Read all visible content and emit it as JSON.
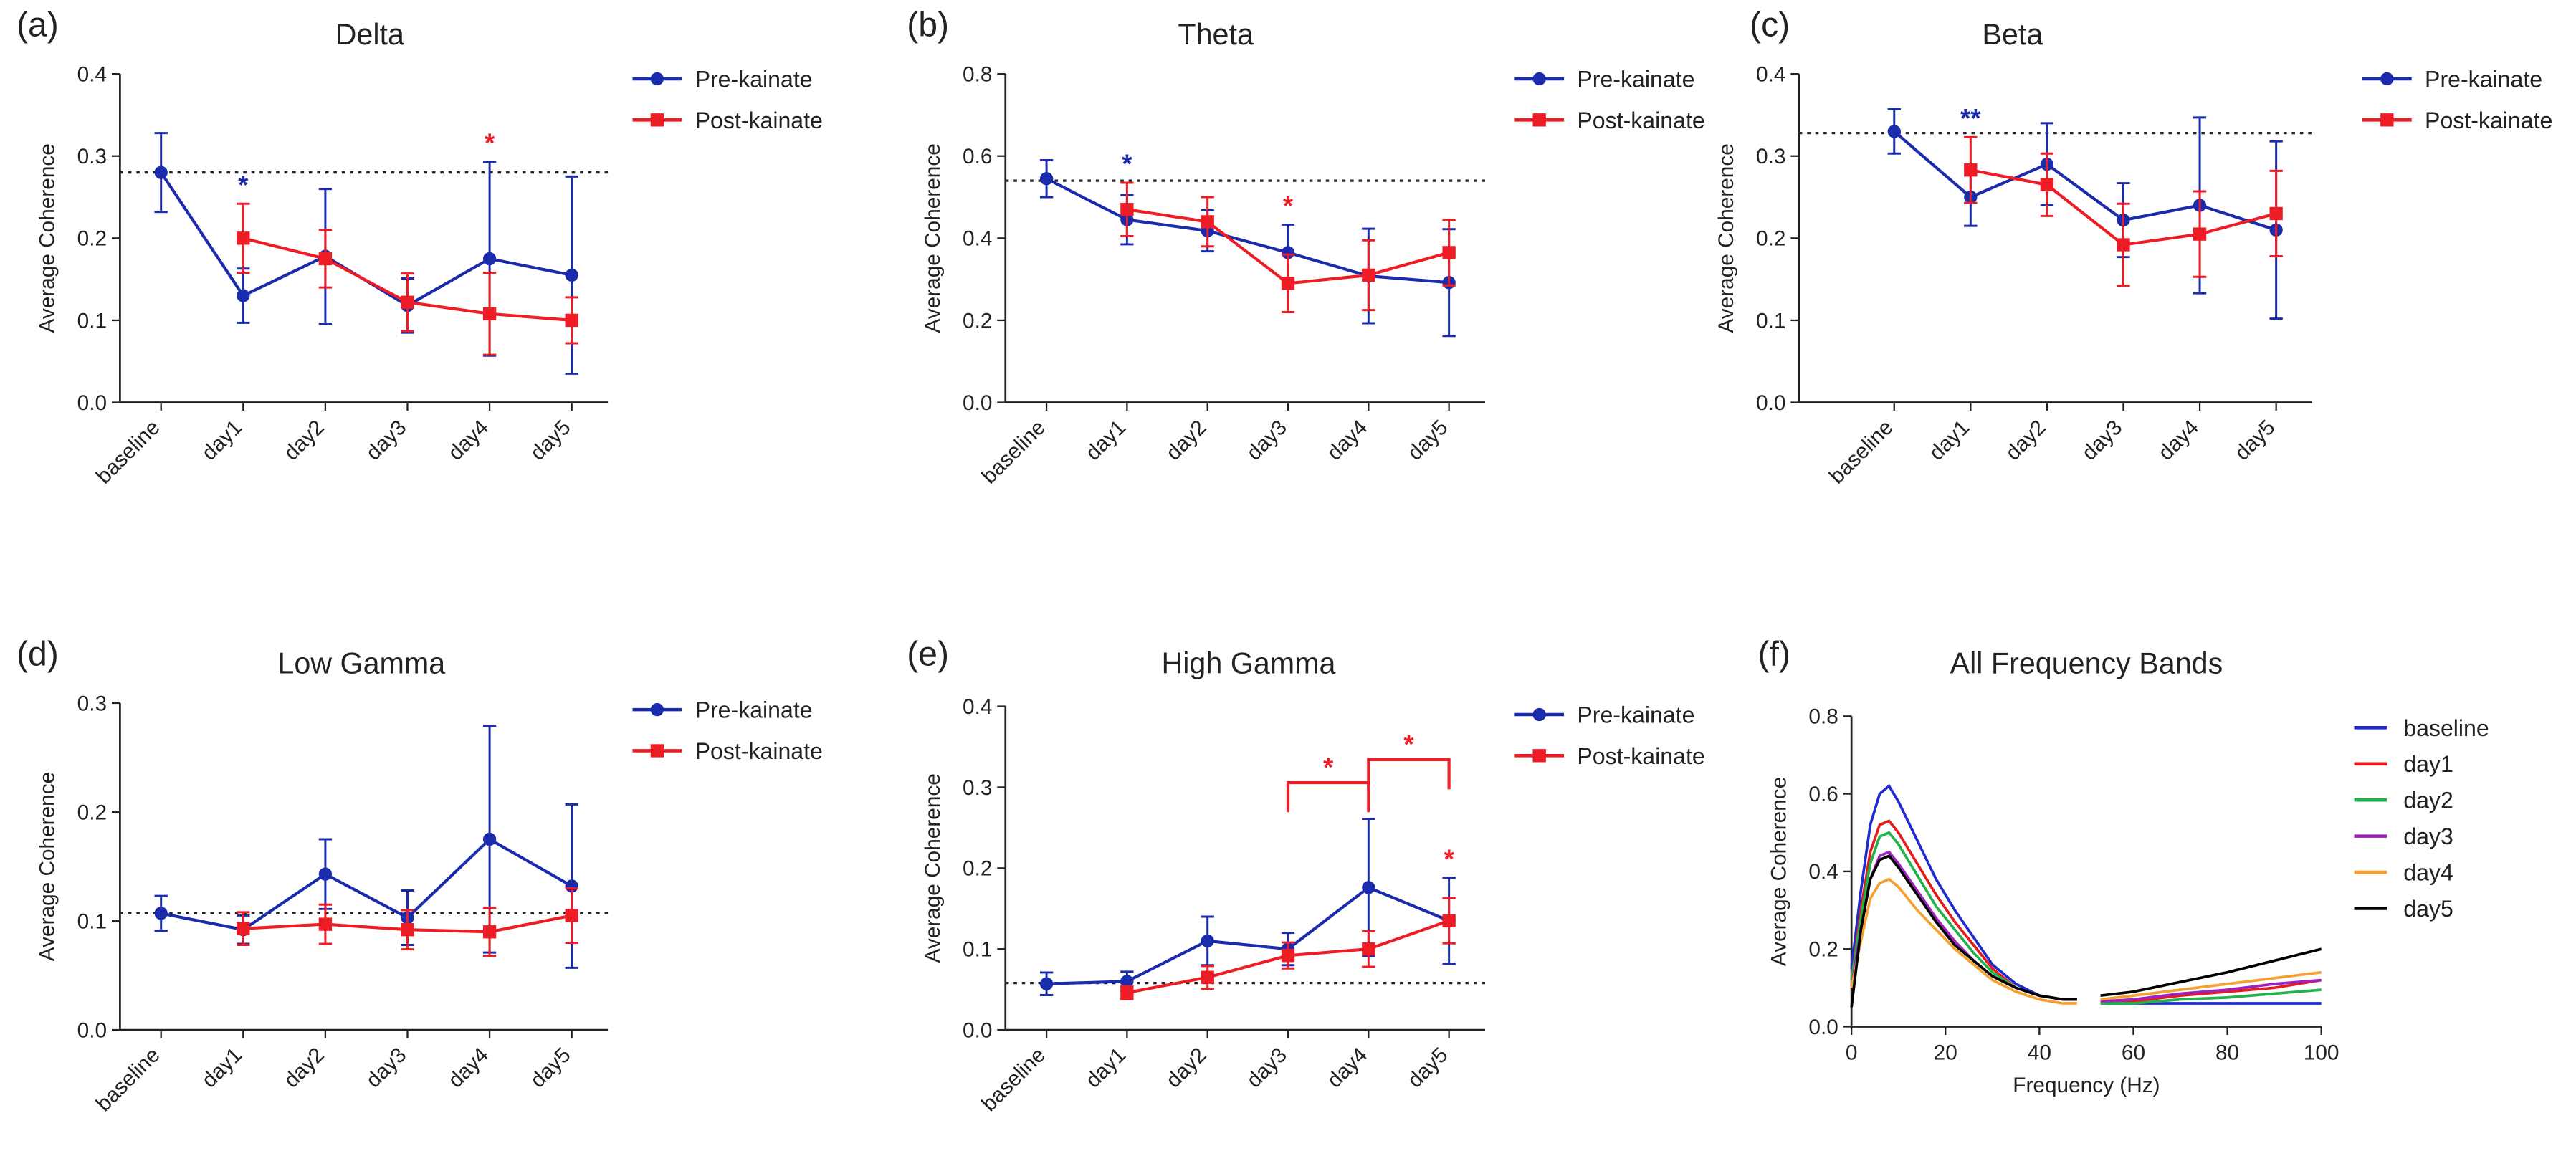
{
  "chart_data": [
    {
      "type": "line",
      "label": "(a)",
      "title": "Delta",
      "y_label": "Average Coherence",
      "categories": [
        "baseline",
        "day1",
        "day2",
        "day3",
        "day4",
        "day5"
      ],
      "ylim": [
        0,
        0.4
      ],
      "yticks": [
        {
          "value": 0,
          "label": "0.0"
        },
        0.1,
        0.2,
        0.3,
        0.4
      ],
      "reference": 0.28,
      "series": [
        {
          "name": "Pre-kainate",
          "color": "#1a2bab",
          "marker": "circle",
          "values": [
            0.28,
            0.13,
            0.178,
            0.118,
            0.175,
            0.155
          ],
          "errors": [
            0.048,
            0.033,
            0.082,
            0.033,
            0.118,
            0.12
          ]
        },
        {
          "name": "Post-kainate",
          "color": "#ee1c25",
          "marker": "square",
          "values": [
            null,
            0.2,
            0.175,
            0.122,
            0.108,
            0.1
          ],
          "errors": [
            null,
            0.042,
            0.035,
            0.035,
            0.05,
            0.028
          ]
        }
      ],
      "annotations": [
        {
          "text": "*",
          "x": "day1",
          "color": "#1a2bab"
        },
        {
          "text": "*",
          "x": "day4",
          "color": "#ee1c25"
        }
      ]
    },
    {
      "type": "line",
      "label": "(b)",
      "title": "Theta",
      "y_label": "Average Coherence",
      "categories": [
        "baseline",
        "day1",
        "day2",
        "day3",
        "day4",
        "day5"
      ],
      "ylim": [
        0,
        0.8
      ],
      "yticks": [
        {
          "value": 0,
          "label": "0.0"
        },
        0.2,
        0.4,
        0.6,
        0.8
      ],
      "reference": 0.54,
      "series": [
        {
          "name": "Pre-kainate",
          "color": "#1a2bab",
          "marker": "circle",
          "values": [
            0.545,
            0.445,
            0.418,
            0.365,
            0.308,
            0.292
          ],
          "errors": [
            0.045,
            0.06,
            0.05,
            0.068,
            0.115,
            0.13
          ]
        },
        {
          "name": "Post-kainate",
          "color": "#ee1c25",
          "marker": "square",
          "values": [
            null,
            0.47,
            0.44,
            0.29,
            0.31,
            0.365
          ],
          "errors": [
            null,
            0.065,
            0.06,
            0.07,
            0.085,
            0.08
          ]
        }
      ],
      "annotations": [
        {
          "text": "*",
          "x": "day1",
          "color": "#1a2bab"
        },
        {
          "text": "*",
          "x": "day3",
          "color": "#ee1c25"
        }
      ]
    },
    {
      "type": "line",
      "label": "(c)",
      "title": "Beta",
      "y_label": "Average Coherence",
      "categories": [
        "baseline",
        "day1",
        "day2",
        "day3",
        "day4",
        "day5"
      ],
      "ylim": [
        0,
        0.4
      ],
      "yticks": [
        {
          "value": 0,
          "label": "0.0"
        },
        0.1,
        0.2,
        0.3,
        0.4
      ],
      "reference": 0.328,
      "series": [
        {
          "name": "Pre-kainate",
          "color": "#1a2bab",
          "marker": "circle",
          "values": [
            0.33,
            0.25,
            0.29,
            0.222,
            0.24,
            0.21
          ],
          "errors": [
            0.027,
            0.035,
            0.05,
            0.045,
            0.107,
            0.108
          ]
        },
        {
          "name": "Post-kainate",
          "color": "#ee1c25",
          "marker": "square",
          "values": [
            null,
            0.283,
            0.265,
            0.192,
            0.205,
            0.23
          ],
          "errors": [
            null,
            0.04,
            0.038,
            0.05,
            0.052,
            0.052
          ]
        }
      ],
      "annotations": [
        {
          "text": "**",
          "x": "day1",
          "color": "#1a2bab"
        }
      ]
    },
    {
      "type": "line",
      "label": "(d)",
      "title": "Low Gamma",
      "y_label": "Average Coherence",
      "categories": [
        "baseline",
        "day1",
        "day2",
        "day3",
        "day4",
        "day5"
      ],
      "ylim": [
        0,
        0.3
      ],
      "yticks": [
        {
          "value": 0,
          "label": "0.0"
        },
        0.1,
        0.2,
        0.3
      ],
      "reference": 0.107,
      "series": [
        {
          "name": "Pre-kainate",
          "color": "#1a2bab",
          "marker": "circle",
          "values": [
            0.107,
            0.092,
            0.143,
            0.103,
            0.175,
            0.132
          ],
          "errors": [
            0.016,
            0.013,
            0.032,
            0.025,
            0.104,
            0.075
          ]
        },
        {
          "name": "Post-kainate",
          "color": "#ee1c25",
          "marker": "square",
          "values": [
            null,
            0.093,
            0.097,
            0.092,
            0.09,
            0.105
          ],
          "errors": [
            null,
            0.015,
            0.018,
            0.018,
            0.022,
            0.025
          ]
        }
      ],
      "annotations": []
    },
    {
      "type": "line",
      "label": "(e)",
      "title": "High Gamma",
      "y_label": "Average Coherence",
      "categories": [
        "baseline",
        "day1",
        "day2",
        "day3",
        "day4",
        "day5"
      ],
      "ylim": [
        0,
        0.4
      ],
      "yticks": [
        {
          "value": 0,
          "label": "0.0"
        },
        0.1,
        0.2,
        0.3,
        0.4
      ],
      "reference": 0.058,
      "series": [
        {
          "name": "Pre-kainate",
          "color": "#1a2bab",
          "marker": "circle",
          "values": [
            0.057,
            0.06,
            0.11,
            0.1,
            0.176,
            0.135
          ],
          "errors": [
            0.014,
            0.012,
            0.03,
            0.02,
            0.085,
            0.053
          ]
        },
        {
          "name": "Post-kainate",
          "color": "#ee1c25",
          "marker": "square",
          "values": [
            null,
            0.046,
            0.065,
            0.092,
            0.1,
            0.135
          ],
          "errors": [
            null,
            0.008,
            0.014,
            0.016,
            0.022,
            0.028
          ]
        }
      ],
      "annotations": [
        {
          "text": "*",
          "from": "day3",
          "to": "day4",
          "color": "#ee1c25"
        },
        {
          "text": "*",
          "from": "day4",
          "to": "day5",
          "color": "#ee1c25"
        },
        {
          "text": "*",
          "x": "day5",
          "color": "#ee1c25"
        }
      ]
    },
    {
      "type": "line",
      "label": "(f)",
      "title": "All Frequency Bands",
      "y_label": "Average Coherence",
      "x_label": "Frequency (Hz)",
      "x": [
        0,
        2,
        4,
        6,
        8,
        10,
        14,
        18,
        22,
        26,
        30,
        35,
        40,
        45,
        48,
        50,
        53,
        60,
        70,
        80,
        90,
        100
      ],
      "xlim": [
        0,
        100
      ],
      "xticks": [
        0,
        20,
        40,
        60,
        80,
        100
      ],
      "ylim": [
        0,
        0.8
      ],
      "yticks": [
        {
          "value": 0,
          "label": "0.0"
        },
        0.2,
        0.4,
        0.6,
        0.8
      ],
      "series": [
        {
          "name": "baseline",
          "color": "#1f2ad0",
          "values": [
            0.15,
            0.35,
            0.52,
            0.6,
            0.62,
            0.58,
            0.48,
            0.38,
            0.3,
            0.23,
            0.16,
            0.11,
            0.08,
            0.07,
            0.07,
            null,
            0.06,
            0.06,
            0.06,
            0.06,
            0.06,
            0.06
          ]
        },
        {
          "name": "day1",
          "color": "#e51c1c",
          "values": [
            0.12,
            0.3,
            0.45,
            0.52,
            0.53,
            0.5,
            0.42,
            0.34,
            0.27,
            0.21,
            0.15,
            0.1,
            0.08,
            0.07,
            0.07,
            null,
            0.06,
            0.065,
            0.08,
            0.09,
            0.1,
            0.12
          ]
        },
        {
          "name": "day2",
          "color": "#22b24c",
          "values": [
            0.12,
            0.28,
            0.42,
            0.49,
            0.5,
            0.47,
            0.39,
            0.31,
            0.25,
            0.19,
            0.14,
            0.1,
            0.08,
            0.07,
            0.07,
            null,
            0.06,
            0.06,
            0.07,
            0.075,
            0.085,
            0.095
          ]
        },
        {
          "name": "day3",
          "color": "#a020c0",
          "values": [
            0.1,
            0.25,
            0.38,
            0.44,
            0.45,
            0.42,
            0.35,
            0.28,
            0.22,
            0.17,
            0.13,
            0.1,
            0.08,
            0.07,
            0.07,
            null,
            0.065,
            0.07,
            0.085,
            0.095,
            0.11,
            0.12
          ]
        },
        {
          "name": "day4",
          "color": "#f5a030",
          "values": [
            0.1,
            0.22,
            0.33,
            0.37,
            0.38,
            0.36,
            0.3,
            0.25,
            0.2,
            0.16,
            0.12,
            0.09,
            0.07,
            0.06,
            0.06,
            null,
            0.07,
            0.08,
            0.095,
            0.11,
            0.125,
            0.14
          ]
        },
        {
          "name": "day5",
          "color": "#000000",
          "values": [
            0.05,
            0.25,
            0.38,
            0.43,
            0.44,
            0.41,
            0.34,
            0.27,
            0.21,
            0.17,
            0.13,
            0.1,
            0.08,
            0.07,
            0.07,
            null,
            0.08,
            0.09,
            0.115,
            0.14,
            0.17,
            0.2
          ]
        }
      ],
      "annotations": []
    }
  ]
}
